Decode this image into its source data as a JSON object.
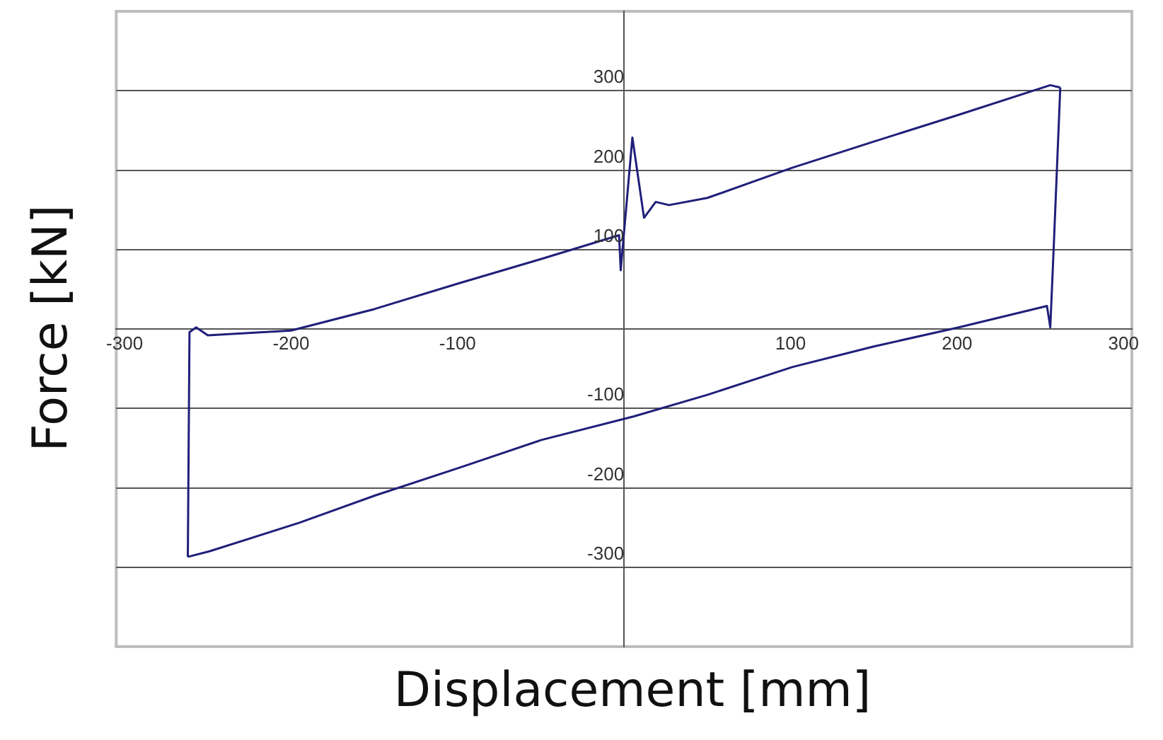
{
  "chart_data": {
    "type": "line",
    "xlabel": "Displacement [mm]",
    "ylabel": "Force [kN]",
    "series": [
      {
        "color": "#1f1f7a",
        "x": [
          -262,
          -261,
          -257,
          -250,
          -200,
          -150,
          -100,
          -50,
          -3,
          -2,
          0,
          5,
          12,
          19,
          27,
          50,
          101,
          150,
          200,
          256,
          262
        ],
        "values": [
          -287,
          -4,
          2,
          -8,
          -2,
          25,
          57,
          88,
          118,
          74,
          122,
          241,
          140,
          160,
          156,
          165,
          203,
          236,
          269,
          307,
          304
        ]
      },
      {
        "color": "#1f1f7a",
        "x": [
          -262,
          -249,
          -195,
          -150,
          -98,
          -50,
          6,
          50,
          101,
          150,
          201,
          254,
          256,
          258,
          262
        ],
        "values": [
          -287,
          -280,
          -244,
          -210,
          -174,
          -140,
          -110,
          -83,
          -48,
          -22,
          2,
          29,
          2,
          100,
          304
        ]
      }
    ],
    "xlim": [
      -305,
      305
    ],
    "xticks": [
      -300,
      -200,
      -100,
      100,
      200,
      300
    ],
    "ylim": [
      -400,
      400
    ],
    "yticks": [
      -300,
      -200,
      -100,
      100,
      200,
      300
    ],
    "grid": "y",
    "legend": false,
    "marker": "none",
    "line_style": "solid"
  }
}
